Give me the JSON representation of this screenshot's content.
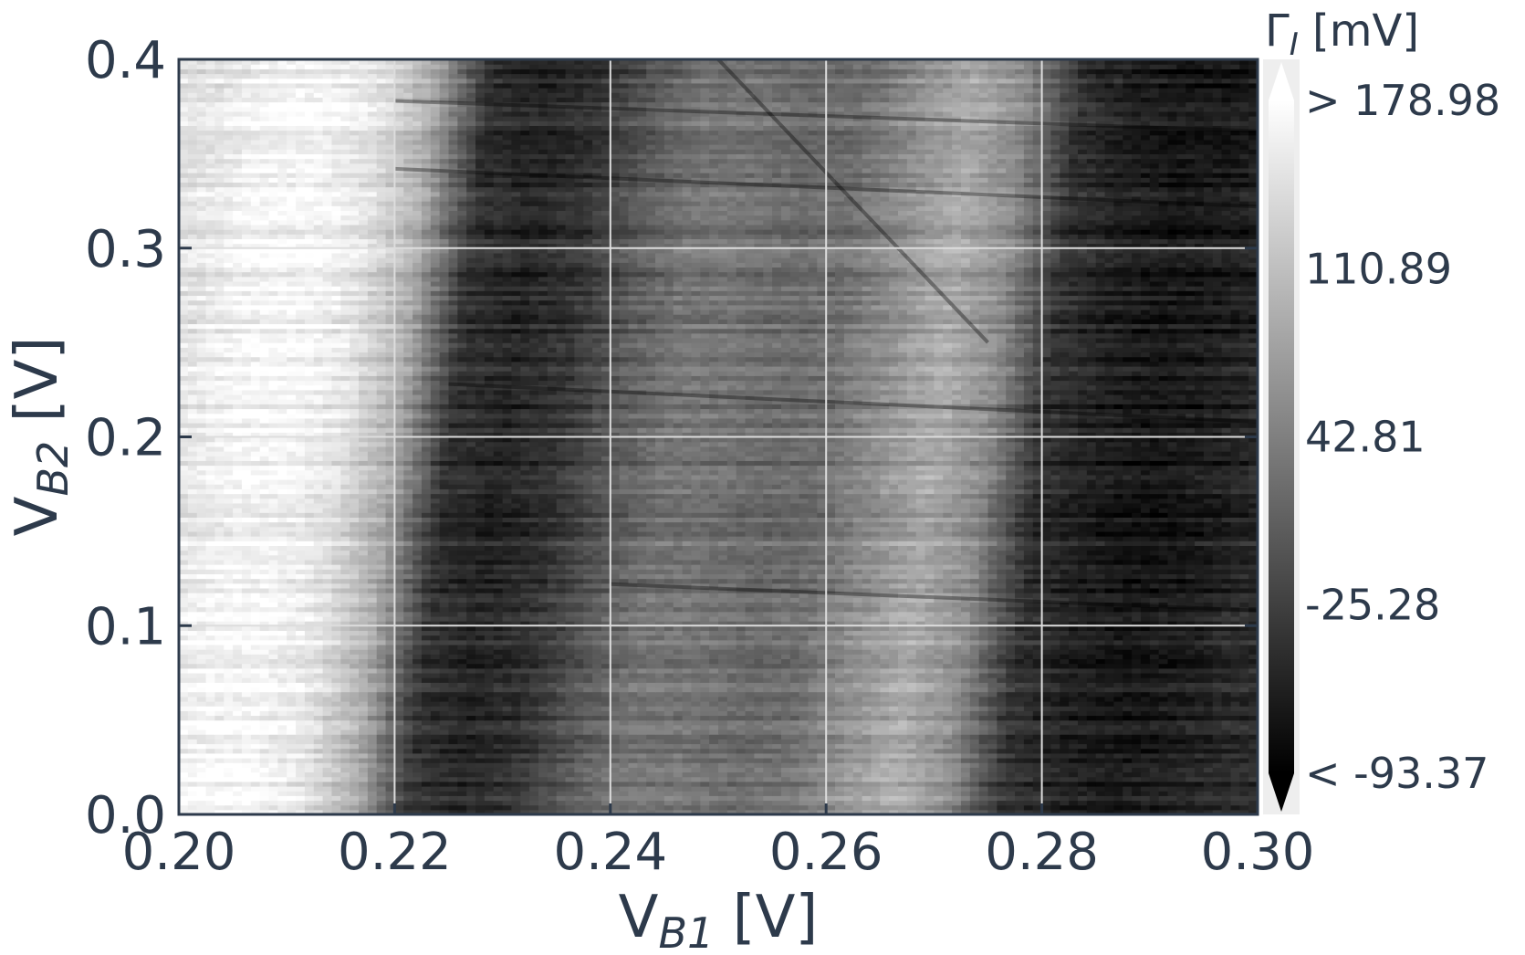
{
  "chart_data": {
    "type": "heatmap",
    "title": "",
    "xlabel": {
      "main": "V",
      "sub": "B1",
      "unit": " [V]"
    },
    "ylabel": {
      "main": "V",
      "sub": "B2",
      "unit": " [V]"
    },
    "xlim": [
      0.2,
      0.3
    ],
    "ylim": [
      0.0,
      0.4
    ],
    "x_ticks": [
      0.2,
      0.22,
      0.24,
      0.26,
      0.28,
      0.3
    ],
    "x_tick_labels": [
      "0.20",
      "0.22",
      "0.24",
      "0.26",
      "0.28",
      "0.30"
    ],
    "y_ticks": [
      0.0,
      0.1,
      0.2,
      0.3,
      0.4
    ],
    "y_tick_labels": [
      "0.0",
      "0.1",
      "0.2",
      "0.3",
      "0.4"
    ],
    "grid": true,
    "colormap": "gray",
    "colorbar": {
      "label": {
        "main": "Γ",
        "sub": "I",
        "unit": " [mV]"
      },
      "min": -93.37,
      "max": 178.98,
      "extend": "both",
      "ticks": [
        178.98,
        110.89,
        42.81,
        -25.28,
        -93.37
      ],
      "tick_labels": [
        "> 178.98",
        "110.89",
        "42.81",
        "-25.28",
        "< -93.37"
      ]
    },
    "profile_x": [
      0.2,
      0.205,
      0.21,
      0.215,
      0.22,
      0.225,
      0.23,
      0.235,
      0.24,
      0.245,
      0.25,
      0.255,
      0.26,
      0.265,
      0.27,
      0.275,
      0.28,
      0.285,
      0.29,
      0.295,
      0.3
    ],
    "profile_values": [
      150,
      168,
      170,
      150,
      90,
      -40,
      -55,
      -40,
      0,
      30,
      30,
      20,
      25,
      60,
      90,
      55,
      -40,
      -60,
      -70,
      -65,
      -50
    ],
    "features": [
      {
        "type": "dark-line",
        "x": [
          0.22,
          0.3
        ],
        "y": [
          0.378,
          0.362
        ]
      },
      {
        "type": "dark-line",
        "x": [
          0.22,
          0.3
        ],
        "y": [
          0.342,
          0.322
        ]
      },
      {
        "type": "dark-line",
        "x": [
          0.225,
          0.3
        ],
        "y": [
          0.228,
          0.208
        ]
      },
      {
        "type": "dark-line",
        "x": [
          0.24,
          0.3
        ],
        "y": [
          0.122,
          0.108
        ]
      },
      {
        "type": "dark-line",
        "x": [
          0.25,
          0.275
        ],
        "y": [
          0.4,
          0.25
        ]
      }
    ]
  }
}
